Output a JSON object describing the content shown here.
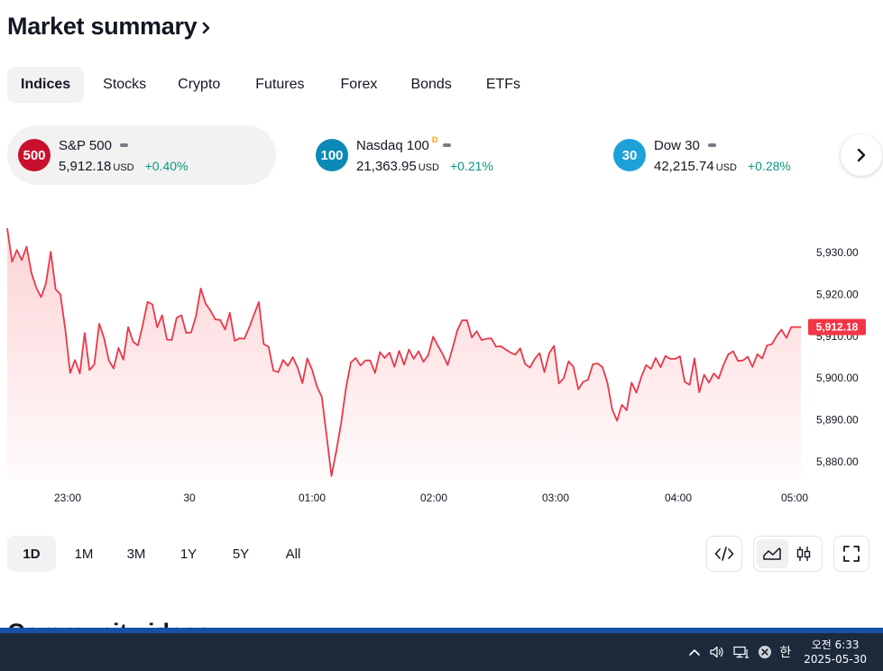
{
  "header": {
    "title": "Market summary"
  },
  "tabs": [
    {
      "label": "Indices",
      "active": true
    },
    {
      "label": "Stocks"
    },
    {
      "label": "Crypto"
    },
    {
      "label": "Futures"
    },
    {
      "label": "Forex"
    },
    {
      "label": "Bonds"
    },
    {
      "label": "ETFs"
    }
  ],
  "cards": [
    {
      "badge": "500",
      "badge_color": "#c8102e",
      "name": "S&P 500",
      "delayed_mark": "",
      "price": "5,912.18",
      "currency": "USD",
      "change": "+0.40%"
    },
    {
      "badge": "100",
      "badge_color": "#0b8ab5",
      "name": "Nasdaq 100",
      "delayed_mark": "D",
      "price": "21,363.95",
      "currency": "USD",
      "change": "+0.21%"
    },
    {
      "badge": "30",
      "badge_color": "#1ea1d9",
      "name": "Dow 30",
      "delayed_mark": "",
      "price": "42,215.74",
      "currency": "USD",
      "change": "+0.28%"
    }
  ],
  "colors": {
    "line": "#e8394a",
    "positive": "#089981",
    "price_tag": "#f23645"
  },
  "chart_data": {
    "type": "area",
    "x_ticks": [
      "23:00",
      "30",
      "01:00",
      "02:00",
      "03:00",
      "04:00",
      "05:00"
    ],
    "y_ticks": [
      "5,930.00",
      "5,920.00",
      "5,910.00",
      "5,900.00",
      "5,890.00",
      "5,880.00"
    ],
    "y_tick_values": [
      5930,
      5920,
      5910,
      5900,
      5890,
      5880
    ],
    "ylim": [
      5877,
      5937
    ],
    "last_price_label": "5,912.18",
    "last_value": 5912.18,
    "values": [
      5935.8,
      5927.8,
      5930.6,
      5928.2,
      5931.4,
      5925.2,
      5921.6,
      5919.3,
      5922.6,
      5930.2,
      5921.2,
      5920.0,
      5911.6,
      5901.2,
      5904.3,
      5901.1,
      5910.8,
      5901.9,
      5903.3,
      5913.0,
      5909.6,
      5904.2,
      5902.3,
      5907.2,
      5904.4,
      5912.2,
      5908.7,
      5907.8,
      5912.6,
      5918.2,
      5917.6,
      5912.1,
      5915.0,
      5909.2,
      5909.1,
      5914.4,
      5915.0,
      5910.8,
      5910.9,
      5914.8,
      5921.4,
      5917.8,
      5916.1,
      5914.0,
      5913.9,
      5911.6,
      5915.6,
      5908.9,
      5909.5,
      5909.4,
      5912.1,
      5915.2,
      5918.2,
      5908.1,
      5907.5,
      5901.8,
      5901.4,
      5904.3,
      5902.9,
      5905.0,
      5902.5,
      5898.8,
      5904.7,
      5902.0,
      5898.0,
      5895.5,
      5886.3,
      5876.6,
      5882.6,
      5889.2,
      5897.6,
      5903.7,
      5904.8,
      5903.0,
      5904.2,
      5904.2,
      5901.2,
      5906.2,
      5904.8,
      5906.1,
      5902.7,
      5906.5,
      5903.2,
      5906.8,
      5904.6,
      5906.4,
      5903.9,
      5905.5,
      5909.9,
      5907.7,
      5905.7,
      5903.1,
      5907.1,
      5911.4,
      5913.8,
      5913.8,
      5909.7,
      5911.2,
      5909.1,
      5909.4,
      5909.5,
      5907.5,
      5907.6,
      5906.8,
      5906.1,
      5905.6,
      5907.1,
      5903.4,
      5902.5,
      5904.6,
      5906.0,
      5901.4,
      5906.0,
      5907.7,
      5898.7,
      5900.0,
      5904.0,
      5902.7,
      5897.3,
      5899.1,
      5899.6,
      5903.3,
      5903.5,
      5902.6,
      5898.9,
      5892.6,
      5889.8,
      5893.6,
      5892.3,
      5898.9,
      5896.5,
      5900.2,
      5903.1,
      5902.2,
      5904.8,
      5902.6,
      5905.3,
      5904.6,
      5904.6,
      5905.2,
      5899.1,
      5898.4,
      5904.7,
      5896.6,
      5900.8,
      5898.9,
      5901.1,
      5899.9,
      5903.1,
      5905.7,
      5906.4,
      5904.1,
      5904.2,
      5905.1,
      5902.7,
      5905.7,
      5904.7,
      5907.8,
      5908.1,
      5910.1,
      5911.6,
      5909.6,
      5912.2,
      5912.2,
      5912.18
    ],
    "xlabel": "",
    "ylabel": ""
  },
  "ranges": [
    {
      "label": "1D",
      "active": true
    },
    {
      "label": "1M"
    },
    {
      "label": "3M"
    },
    {
      "label": "1Y"
    },
    {
      "label": "5Y"
    },
    {
      "label": "All"
    }
  ],
  "next_section": {
    "title": "Community ideas"
  },
  "taskbar": {
    "ime": "한",
    "time": "오전 6:33",
    "date": "2025-05-30"
  }
}
